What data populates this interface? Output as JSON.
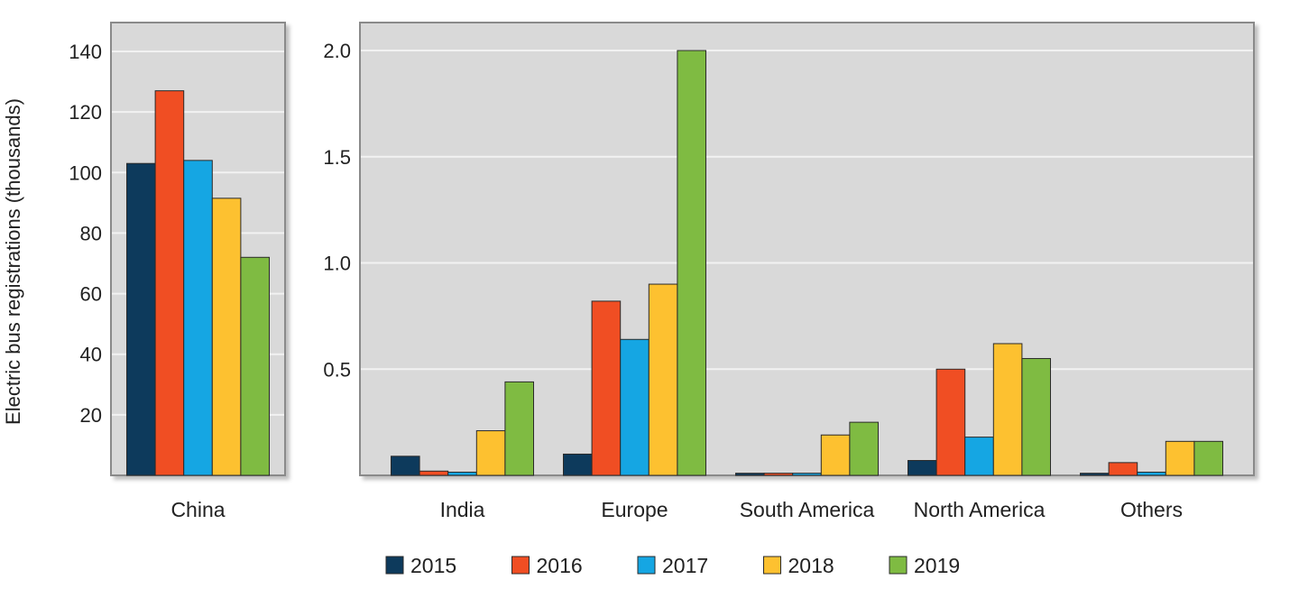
{
  "chart_data": [
    {
      "type": "bar",
      "panel": "china",
      "categories": [
        "China"
      ],
      "series": [
        {
          "name": "2015",
          "values": [
            103
          ]
        },
        {
          "name": "2016",
          "values": [
            127
          ]
        },
        {
          "name": "2017",
          "values": [
            104
          ]
        },
        {
          "name": "2018",
          "values": [
            91.5
          ]
        },
        {
          "name": "2019",
          "values": [
            72
          ]
        }
      ],
      "ylabel": "Electric bus registrations (thousands)",
      "yticks": [
        "20",
        "40",
        "60",
        "80",
        "100",
        "120",
        "140"
      ],
      "ylim": [
        0,
        140
      ],
      "grid": true
    },
    {
      "type": "bar",
      "panel": "other-regions",
      "categories": [
        "India",
        "Europe",
        "South America",
        "North America",
        "Others"
      ],
      "series": [
        {
          "name": "2015",
          "values": [
            0.09,
            0.1,
            0.01,
            0.07,
            0.01
          ]
        },
        {
          "name": "2016",
          "values": [
            0.02,
            0.82,
            0.01,
            0.5,
            0.06
          ]
        },
        {
          "name": "2017",
          "values": [
            0.015,
            0.64,
            0.01,
            0.18,
            0.015
          ]
        },
        {
          "name": "2018",
          "values": [
            0.21,
            0.9,
            0.19,
            0.62,
            0.16
          ]
        },
        {
          "name": "2019",
          "values": [
            0.44,
            2.0,
            0.25,
            0.55,
            0.16
          ]
        }
      ],
      "yticks": [
        "0.5",
        "1.0",
        "1.5",
        "2.0"
      ],
      "ylim": [
        0,
        2.0
      ],
      "grid": true
    }
  ],
  "legend": {
    "placement": "bottom-center",
    "items": [
      {
        "label": "2015",
        "color": "#0d3a5c"
      },
      {
        "label": "2016",
        "color": "#f04e23"
      },
      {
        "label": "2017",
        "color": "#15a6e3"
      },
      {
        "label": "2018",
        "color": "#fdc130"
      },
      {
        "label": "2019",
        "color": "#7fbb42"
      }
    ]
  },
  "colors": {
    "plot_background": "#d9d9d9",
    "plot_border": "#8a8a8a",
    "gridline": "#f2f2f2"
  }
}
